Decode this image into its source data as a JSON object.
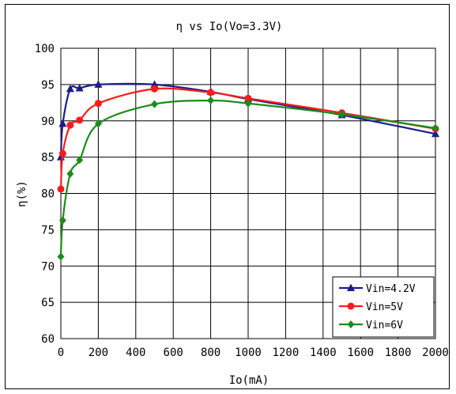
{
  "chart_data": {
    "type": "line",
    "title": "η vs Io(Vo=3.3V)",
    "xlabel": "Io(mA)",
    "ylabel": "η(%)",
    "xlim": [
      0,
      2000
    ],
    "ylim": [
      60,
      100
    ],
    "xticks": [
      0,
      200,
      400,
      600,
      800,
      1000,
      1200,
      1400,
      1600,
      1800,
      2000
    ],
    "yticks": [
      60,
      65,
      70,
      75,
      80,
      85,
      90,
      95,
      100
    ],
    "grid": true,
    "legend_position": "bottom-right",
    "series": [
      {
        "name": "Vin=4.2V",
        "color": "#1c1c8c",
        "marker": "triangle",
        "x": [
          0,
          10,
          50,
          100,
          200,
          500,
          800,
          1000,
          1500,
          2000
        ],
        "y": [
          85.0,
          89.6,
          94.4,
          94.5,
          95.0,
          95.0,
          94.0,
          93.0,
          90.8,
          88.2
        ]
      },
      {
        "name": "Vin=5V",
        "color": "#ff1a1a",
        "marker": "circle",
        "x": [
          0,
          10,
          50,
          100,
          200,
          500,
          800,
          1000,
          1500,
          2000
        ],
        "y": [
          80.6,
          85.5,
          89.4,
          90.1,
          92.4,
          94.4,
          93.9,
          93.1,
          91.1,
          88.9
        ]
      },
      {
        "name": "Vin=6V",
        "color": "#1a8c1a",
        "marker": "diamond",
        "x": [
          0,
          10,
          50,
          100,
          200,
          500,
          800,
          1000,
          1500,
          2000
        ],
        "y": [
          71.3,
          76.3,
          82.7,
          84.6,
          89.6,
          92.3,
          92.8,
          92.4,
          90.9,
          89.0
        ]
      }
    ]
  }
}
